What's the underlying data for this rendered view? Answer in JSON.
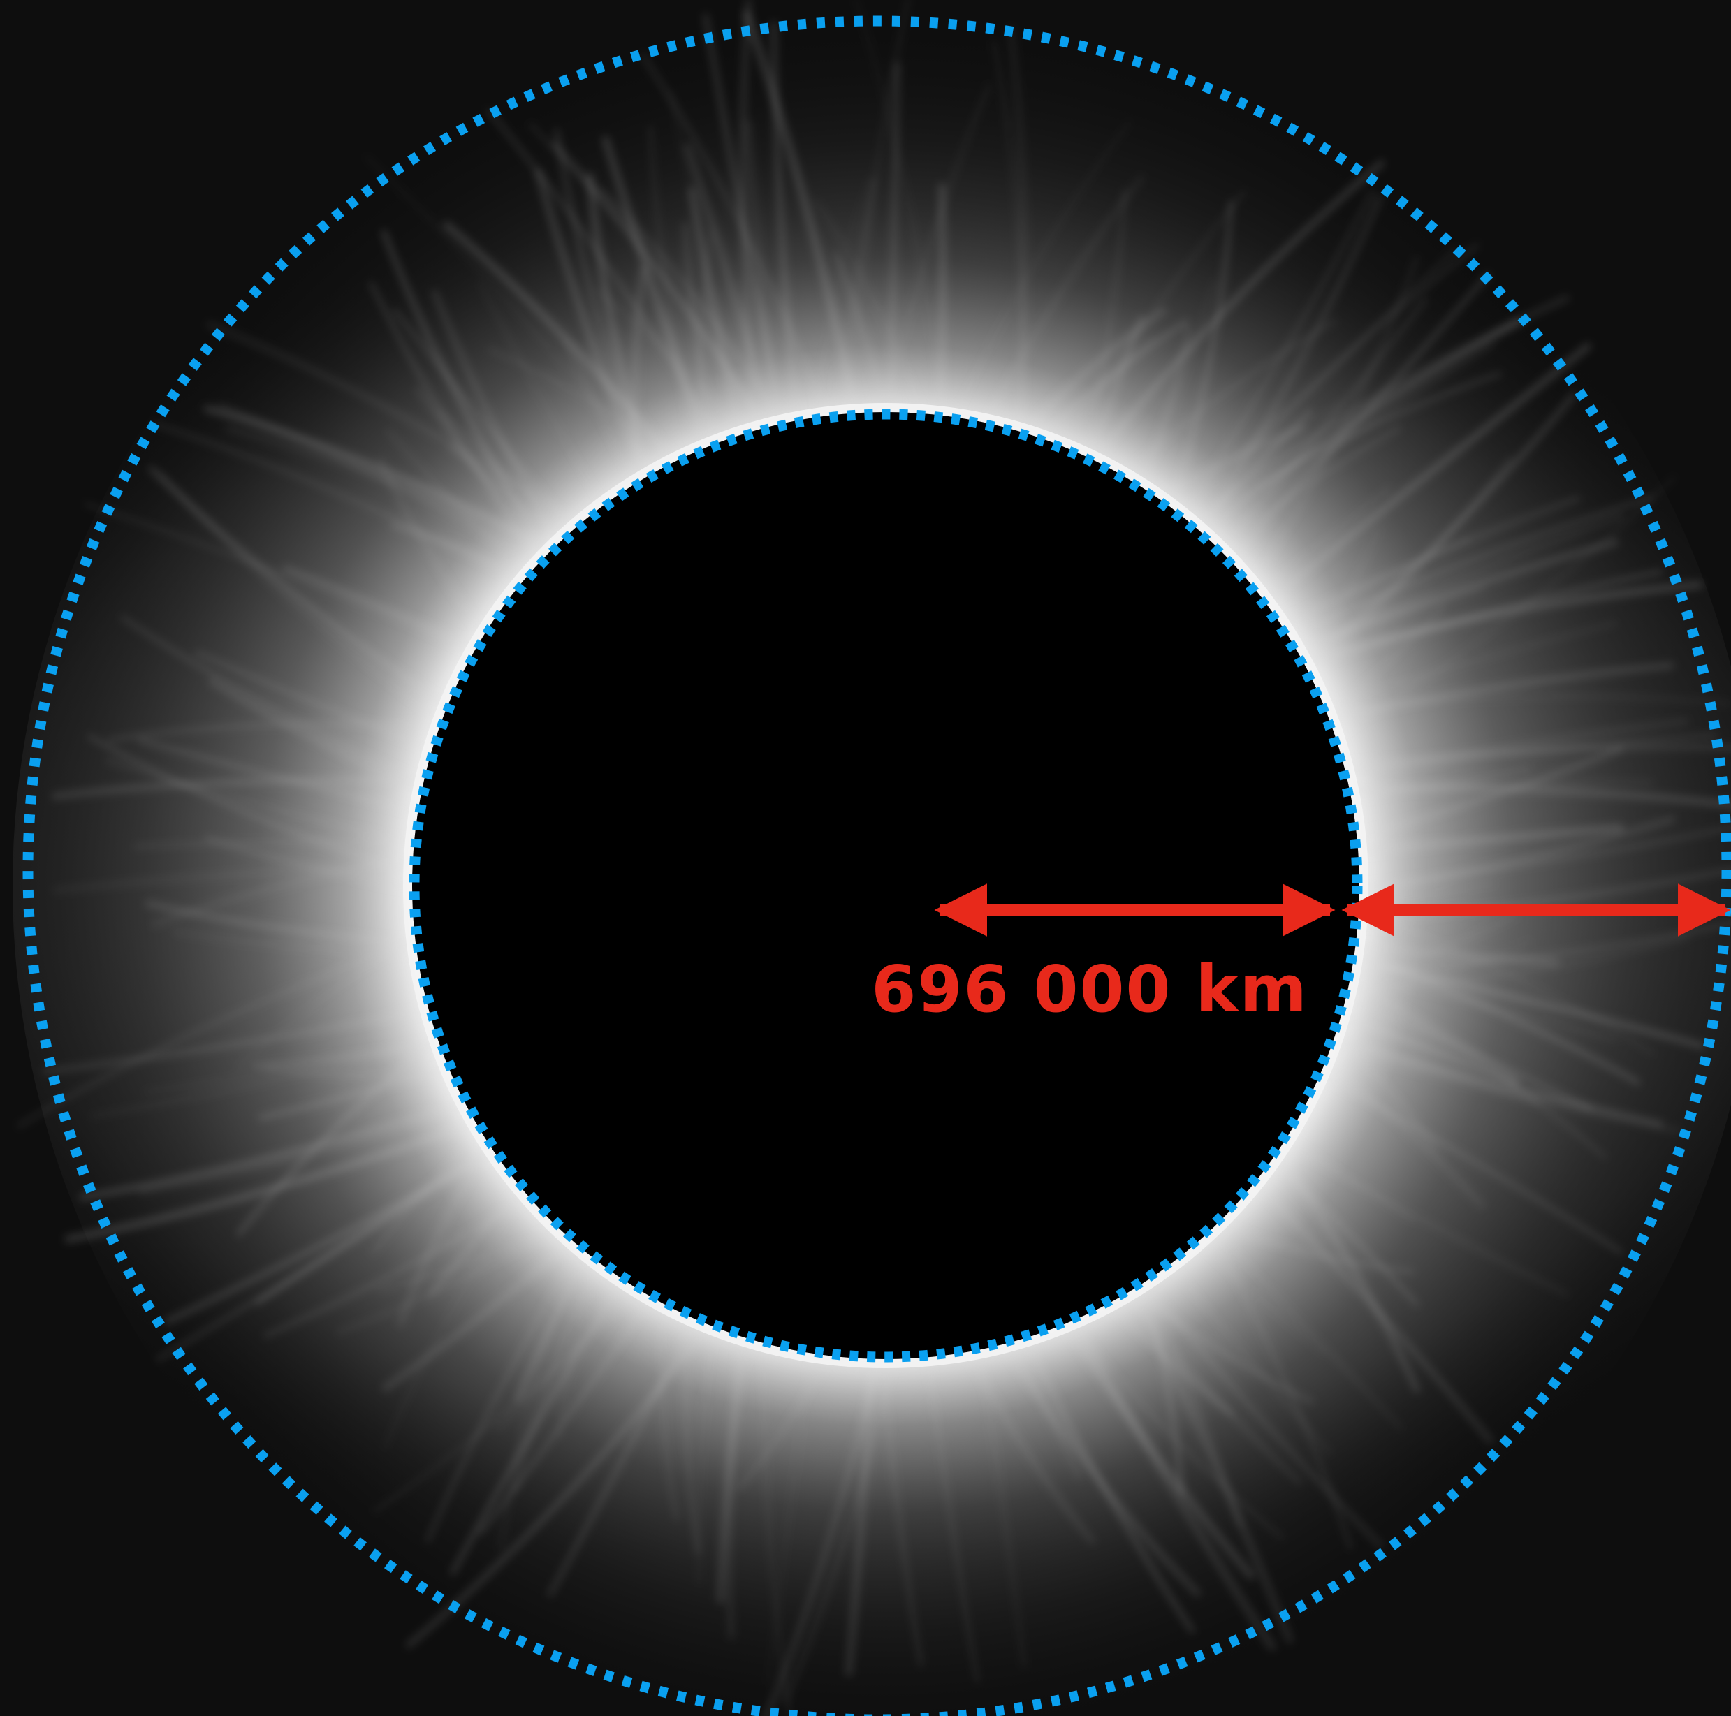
{
  "annotation": {
    "radius_label": "696 000 km"
  },
  "colors": {
    "background": "#0e0e0e",
    "corona": "#d8d8d8",
    "moon_disk": "#000000",
    "dotted_circles": "#0aa0f0",
    "arrows": "#e8291b",
    "label": "#e8291b"
  },
  "elements": {
    "inner_circle": "dotted-circle-solar-limb",
    "outer_circle": "dotted-circle-outer-corona",
    "arrow_inner": "double-arrow-solar-radius",
    "arrow_outer": "double-arrow-second-radius"
  }
}
